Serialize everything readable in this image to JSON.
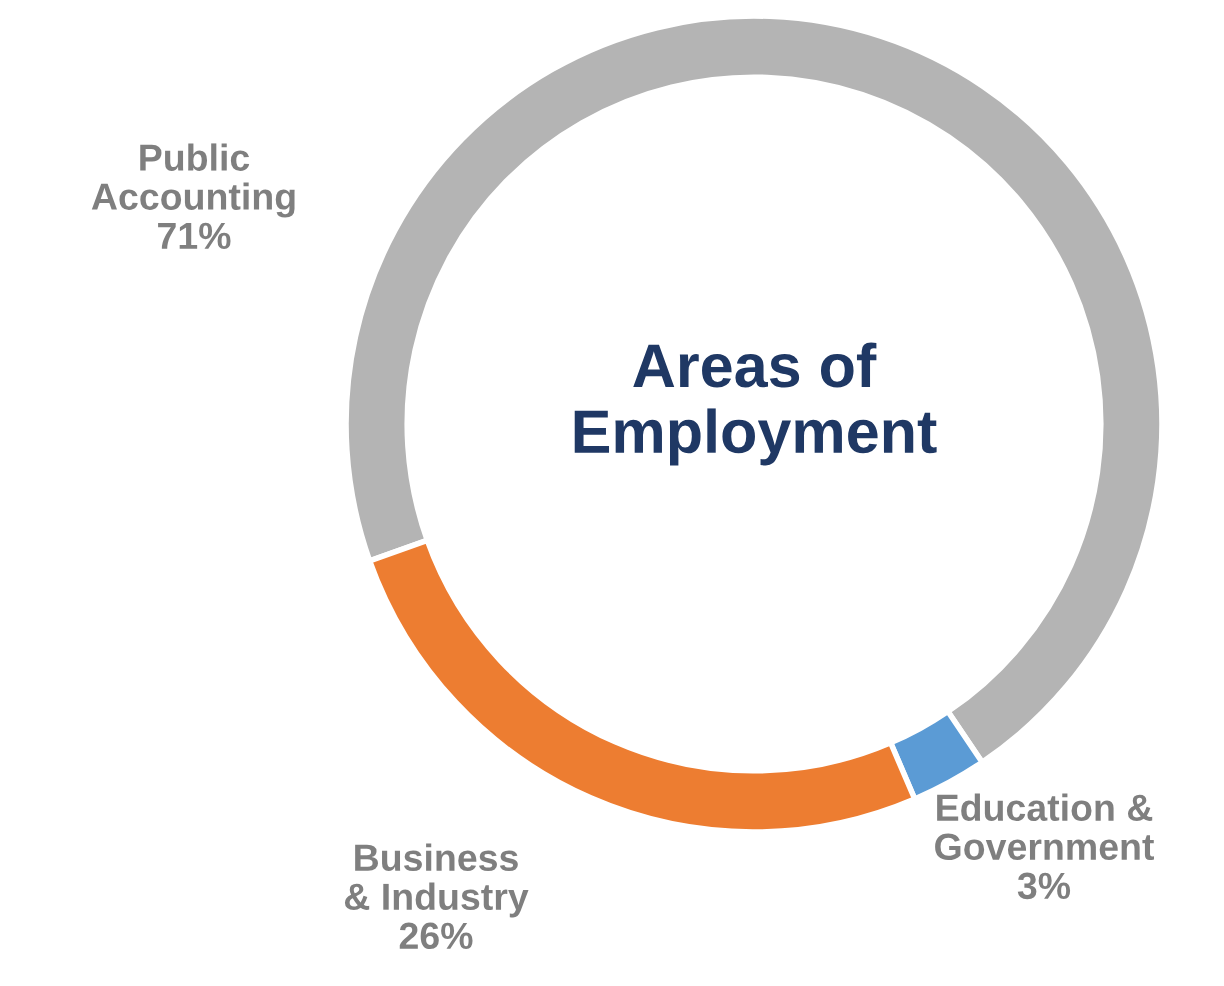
{
  "chart_data": {
    "type": "donut",
    "title": "Areas of\nEmployment",
    "categories": [
      "Public\nAccounting",
      "Education &\nGovernment",
      "Business\n& Industry"
    ],
    "values": [
      71,
      3,
      26
    ],
    "value_labels": [
      "71%",
      "3%",
      "26%"
    ],
    "colors": [
      "#b4b4b4",
      "#5b9bd5",
      "#ed7d31"
    ],
    "legend": false
  }
}
